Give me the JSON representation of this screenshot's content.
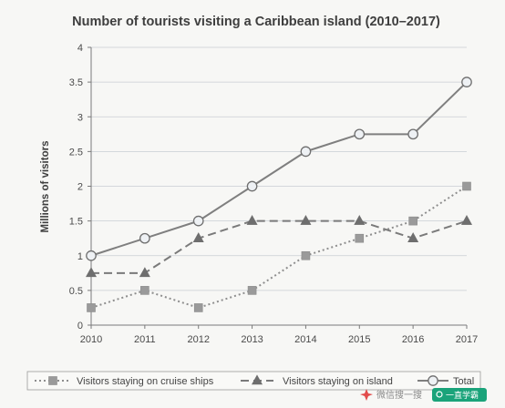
{
  "chart_data": {
    "type": "line",
    "title": "Number of tourists visiting a Caribbean island (2010–2017)",
    "xlabel": "",
    "ylabel": "Millions of visitors",
    "x": [
      "2010",
      "2011",
      "2012",
      "2013",
      "2014",
      "2015",
      "2016",
      "2017"
    ],
    "ylim": [
      0,
      4
    ],
    "yticks": [
      "0",
      "0.5",
      "1",
      "1.5",
      "2",
      "2.5",
      "3",
      "3.5",
      "4"
    ],
    "grid": true,
    "legend_position": "bottom",
    "series": [
      {
        "name": "Visitors staying on cruise ships",
        "values": [
          0.25,
          0.5,
          0.25,
          0.5,
          1,
          1.25,
          1.5,
          2
        ],
        "marker": "square",
        "line": "dotted",
        "color": "#8e8e8e"
      },
      {
        "name": "Visitors staying on island",
        "values": [
          0.75,
          0.75,
          1.25,
          1.5,
          1.5,
          1.5,
          1.25,
          1.5
        ],
        "marker": "triangle",
        "line": "dashed",
        "color": "#7a7a7a"
      },
      {
        "name": "Total",
        "values": [
          1,
          1.25,
          1.5,
          2,
          2.5,
          2.75,
          2.75,
          3.5
        ],
        "marker": "circle",
        "line": "solid",
        "color": "#7f7f7f"
      }
    ]
  },
  "watermark": {
    "text": "微信搜一搜",
    "badge": "一直学霸"
  }
}
